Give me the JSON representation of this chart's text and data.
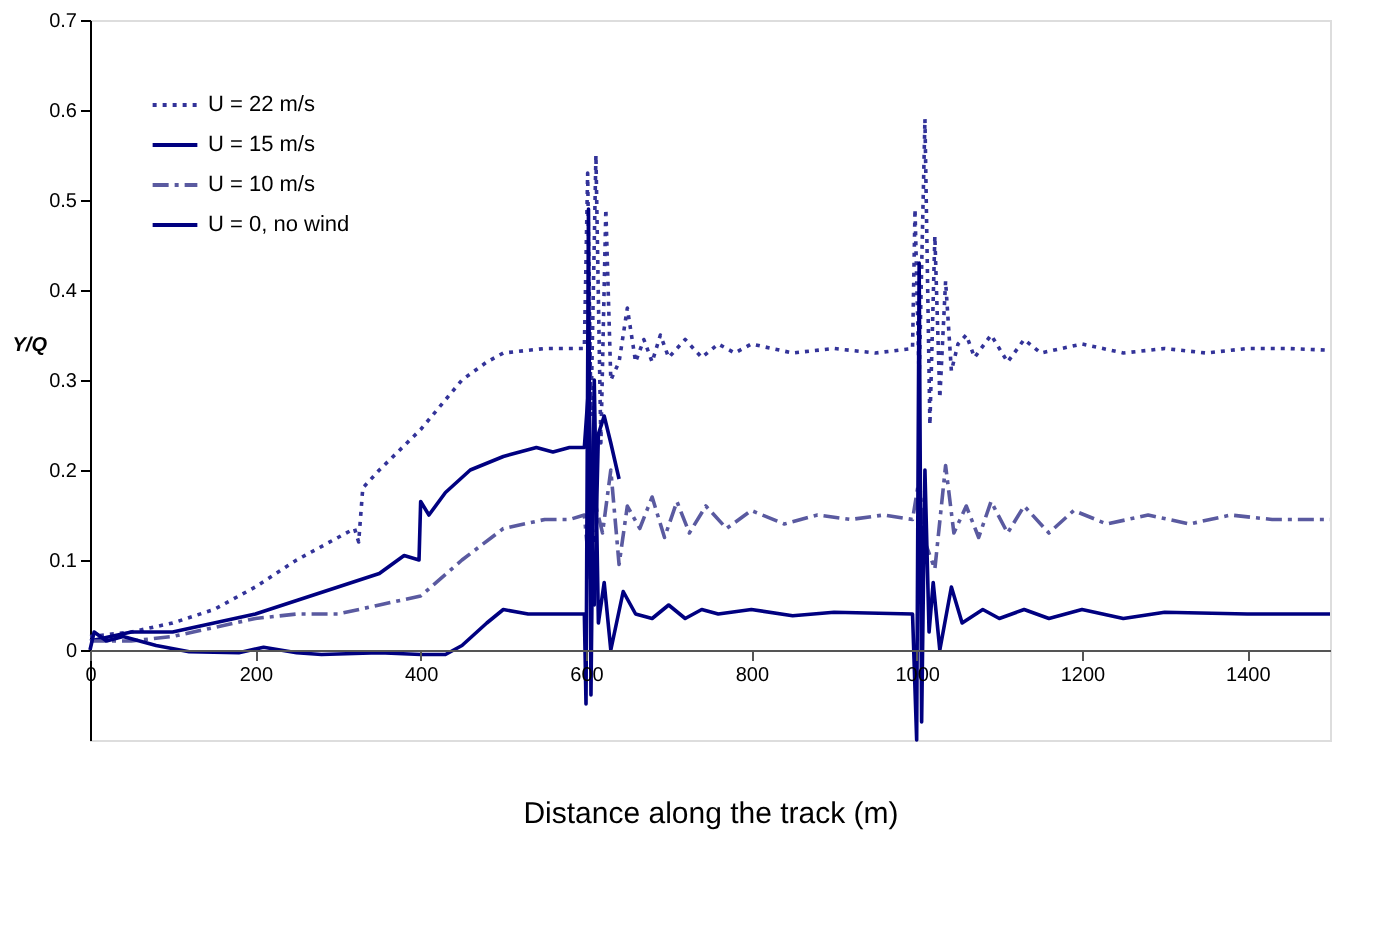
{
  "chart_data": {
    "type": "line",
    "xlabel": "Distance along the track (m)",
    "ylabel": "Y/Q",
    "xlim": [
      0,
      1500
    ],
    "xticks": [
      0,
      200,
      400,
      600,
      800,
      1000,
      1200,
      1400
    ],
    "ylim": [
      -0.1,
      0.7
    ],
    "yticks": [
      0,
      0.1,
      0.2,
      0.3,
      0.4,
      0.5,
      0.6,
      0.7
    ],
    "grid": false,
    "legend": "top left",
    "series": [
      {
        "name": "U = 22 m/s",
        "color": "#333399",
        "line_style": "dotted",
        "x": [
          0,
          50,
          100,
          150,
          200,
          250,
          300,
          320,
          325,
          330,
          350,
          400,
          450,
          480,
          500,
          550,
          580,
          598,
          602,
          606,
          612,
          618,
          624,
          630,
          640,
          650,
          660,
          670,
          680,
          690,
          700,
          720,
          740,
          760,
          780,
          800,
          850,
          900,
          950,
          995,
          998,
          1003,
          1010,
          1016,
          1022,
          1028,
          1035,
          1042,
          1050,
          1060,
          1070,
          1090,
          1110,
          1130,
          1150,
          1200,
          1250,
          1300,
          1350,
          1400,
          1450,
          1500
        ],
        "values": [
          0.015,
          0.02,
          0.03,
          0.045,
          0.07,
          0.1,
          0.125,
          0.135,
          0.12,
          0.18,
          0.2,
          0.245,
          0.3,
          0.32,
          0.33,
          0.335,
          0.335,
          0.335,
          0.53,
          0.26,
          0.55,
          0.23,
          0.49,
          0.3,
          0.32,
          0.38,
          0.32,
          0.345,
          0.32,
          0.35,
          0.325,
          0.345,
          0.325,
          0.34,
          0.33,
          0.34,
          0.33,
          0.335,
          0.33,
          0.335,
          0.49,
          0.3,
          0.59,
          0.25,
          0.46,
          0.28,
          0.41,
          0.31,
          0.34,
          0.35,
          0.325,
          0.35,
          0.32,
          0.345,
          0.33,
          0.34,
          0.33,
          0.335,
          0.33,
          0.335,
          0.335,
          0.333
        ]
      },
      {
        "name": "U = 15 m/s",
        "color": "#000080",
        "line_style": "solid",
        "x": [
          0,
          50,
          100,
          150,
          200,
          250,
          300,
          350,
          380,
          398,
          400,
          410,
          430,
          460,
          500,
          540,
          560,
          580,
          598,
          603,
          610,
          615,
          622,
          630,
          640
        ],
        "values": [
          0.01,
          0.02,
          0.02,
          0.03,
          0.04,
          0.055,
          0.07,
          0.085,
          0.105,
          0.1,
          0.165,
          0.15,
          0.175,
          0.2,
          0.215,
          0.225,
          0.22,
          0.225,
          0.225,
          0.29,
          0.05,
          0.24,
          0.26,
          0.23,
          0.19
        ]
      },
      {
        "name": "U = 10 m/s",
        "color": "#5a5aa0",
        "line_style": "dashed",
        "x": [
          0,
          50,
          100,
          150,
          200,
          250,
          300,
          350,
          400,
          450,
          500,
          550,
          580,
          598,
          605,
          612,
          620,
          630,
          640,
          650,
          665,
          680,
          695,
          710,
          725,
          745,
          770,
          800,
          840,
          880,
          920,
          960,
          995,
          1003,
          1010,
          1022,
          1035,
          1045,
          1060,
          1075,
          1090,
          1110,
          1130,
          1160,
          1190,
          1230,
          1280,
          1330,
          1380,
          1430,
          1500
        ],
        "values": [
          0.01,
          0.01,
          0.015,
          0.025,
          0.035,
          0.04,
          0.04,
          0.05,
          0.06,
          0.1,
          0.135,
          0.145,
          0.145,
          0.15,
          0.08,
          0.16,
          0.13,
          0.2,
          0.095,
          0.16,
          0.135,
          0.17,
          0.125,
          0.165,
          0.13,
          0.16,
          0.135,
          0.155,
          0.14,
          0.15,
          0.145,
          0.15,
          0.145,
          0.19,
          0.12,
          0.09,
          0.205,
          0.13,
          0.16,
          0.125,
          0.165,
          0.13,
          0.16,
          0.13,
          0.155,
          0.14,
          0.15,
          0.14,
          0.15,
          0.145,
          0.145
        ]
      },
      {
        "name": "U = 0, no wind",
        "color": "#000080",
        "line_style": "solid",
        "x": [
          0,
          5,
          20,
          40,
          80,
          120,
          180,
          210,
          250,
          280,
          350,
          400,
          430,
          450,
          480,
          500,
          530,
          560,
          580,
          598,
          600,
          603,
          606,
          610,
          615,
          622,
          630,
          645,
          660,
          680,
          700,
          720,
          740,
          760,
          800,
          850,
          900,
          995,
          1000,
          1003,
          1006,
          1010,
          1015,
          1020,
          1028,
          1042,
          1055,
          1080,
          1100,
          1130,
          1160,
          1200,
          1250,
          1300,
          1400,
          1500
        ],
        "values": [
          0.0,
          0.02,
          0.01,
          0.015,
          0.005,
          -0.002,
          -0.003,
          0.003,
          -0.003,
          -0.005,
          -0.003,
          -0.005,
          -0.005,
          0.005,
          0.03,
          0.045,
          0.04,
          0.04,
          0.04,
          0.04,
          -0.06,
          0.49,
          -0.05,
          0.3,
          0.03,
          0.075,
          0.0,
          0.065,
          0.04,
          0.035,
          0.05,
          0.035,
          0.045,
          0.04,
          0.045,
          0.038,
          0.042,
          0.04,
          -0.1,
          0.43,
          -0.08,
          0.2,
          0.02,
          0.075,
          0.0,
          0.07,
          0.03,
          0.045,
          0.035,
          0.045,
          0.035,
          0.045,
          0.035,
          0.042,
          0.04,
          0.04
        ]
      }
    ]
  }
}
